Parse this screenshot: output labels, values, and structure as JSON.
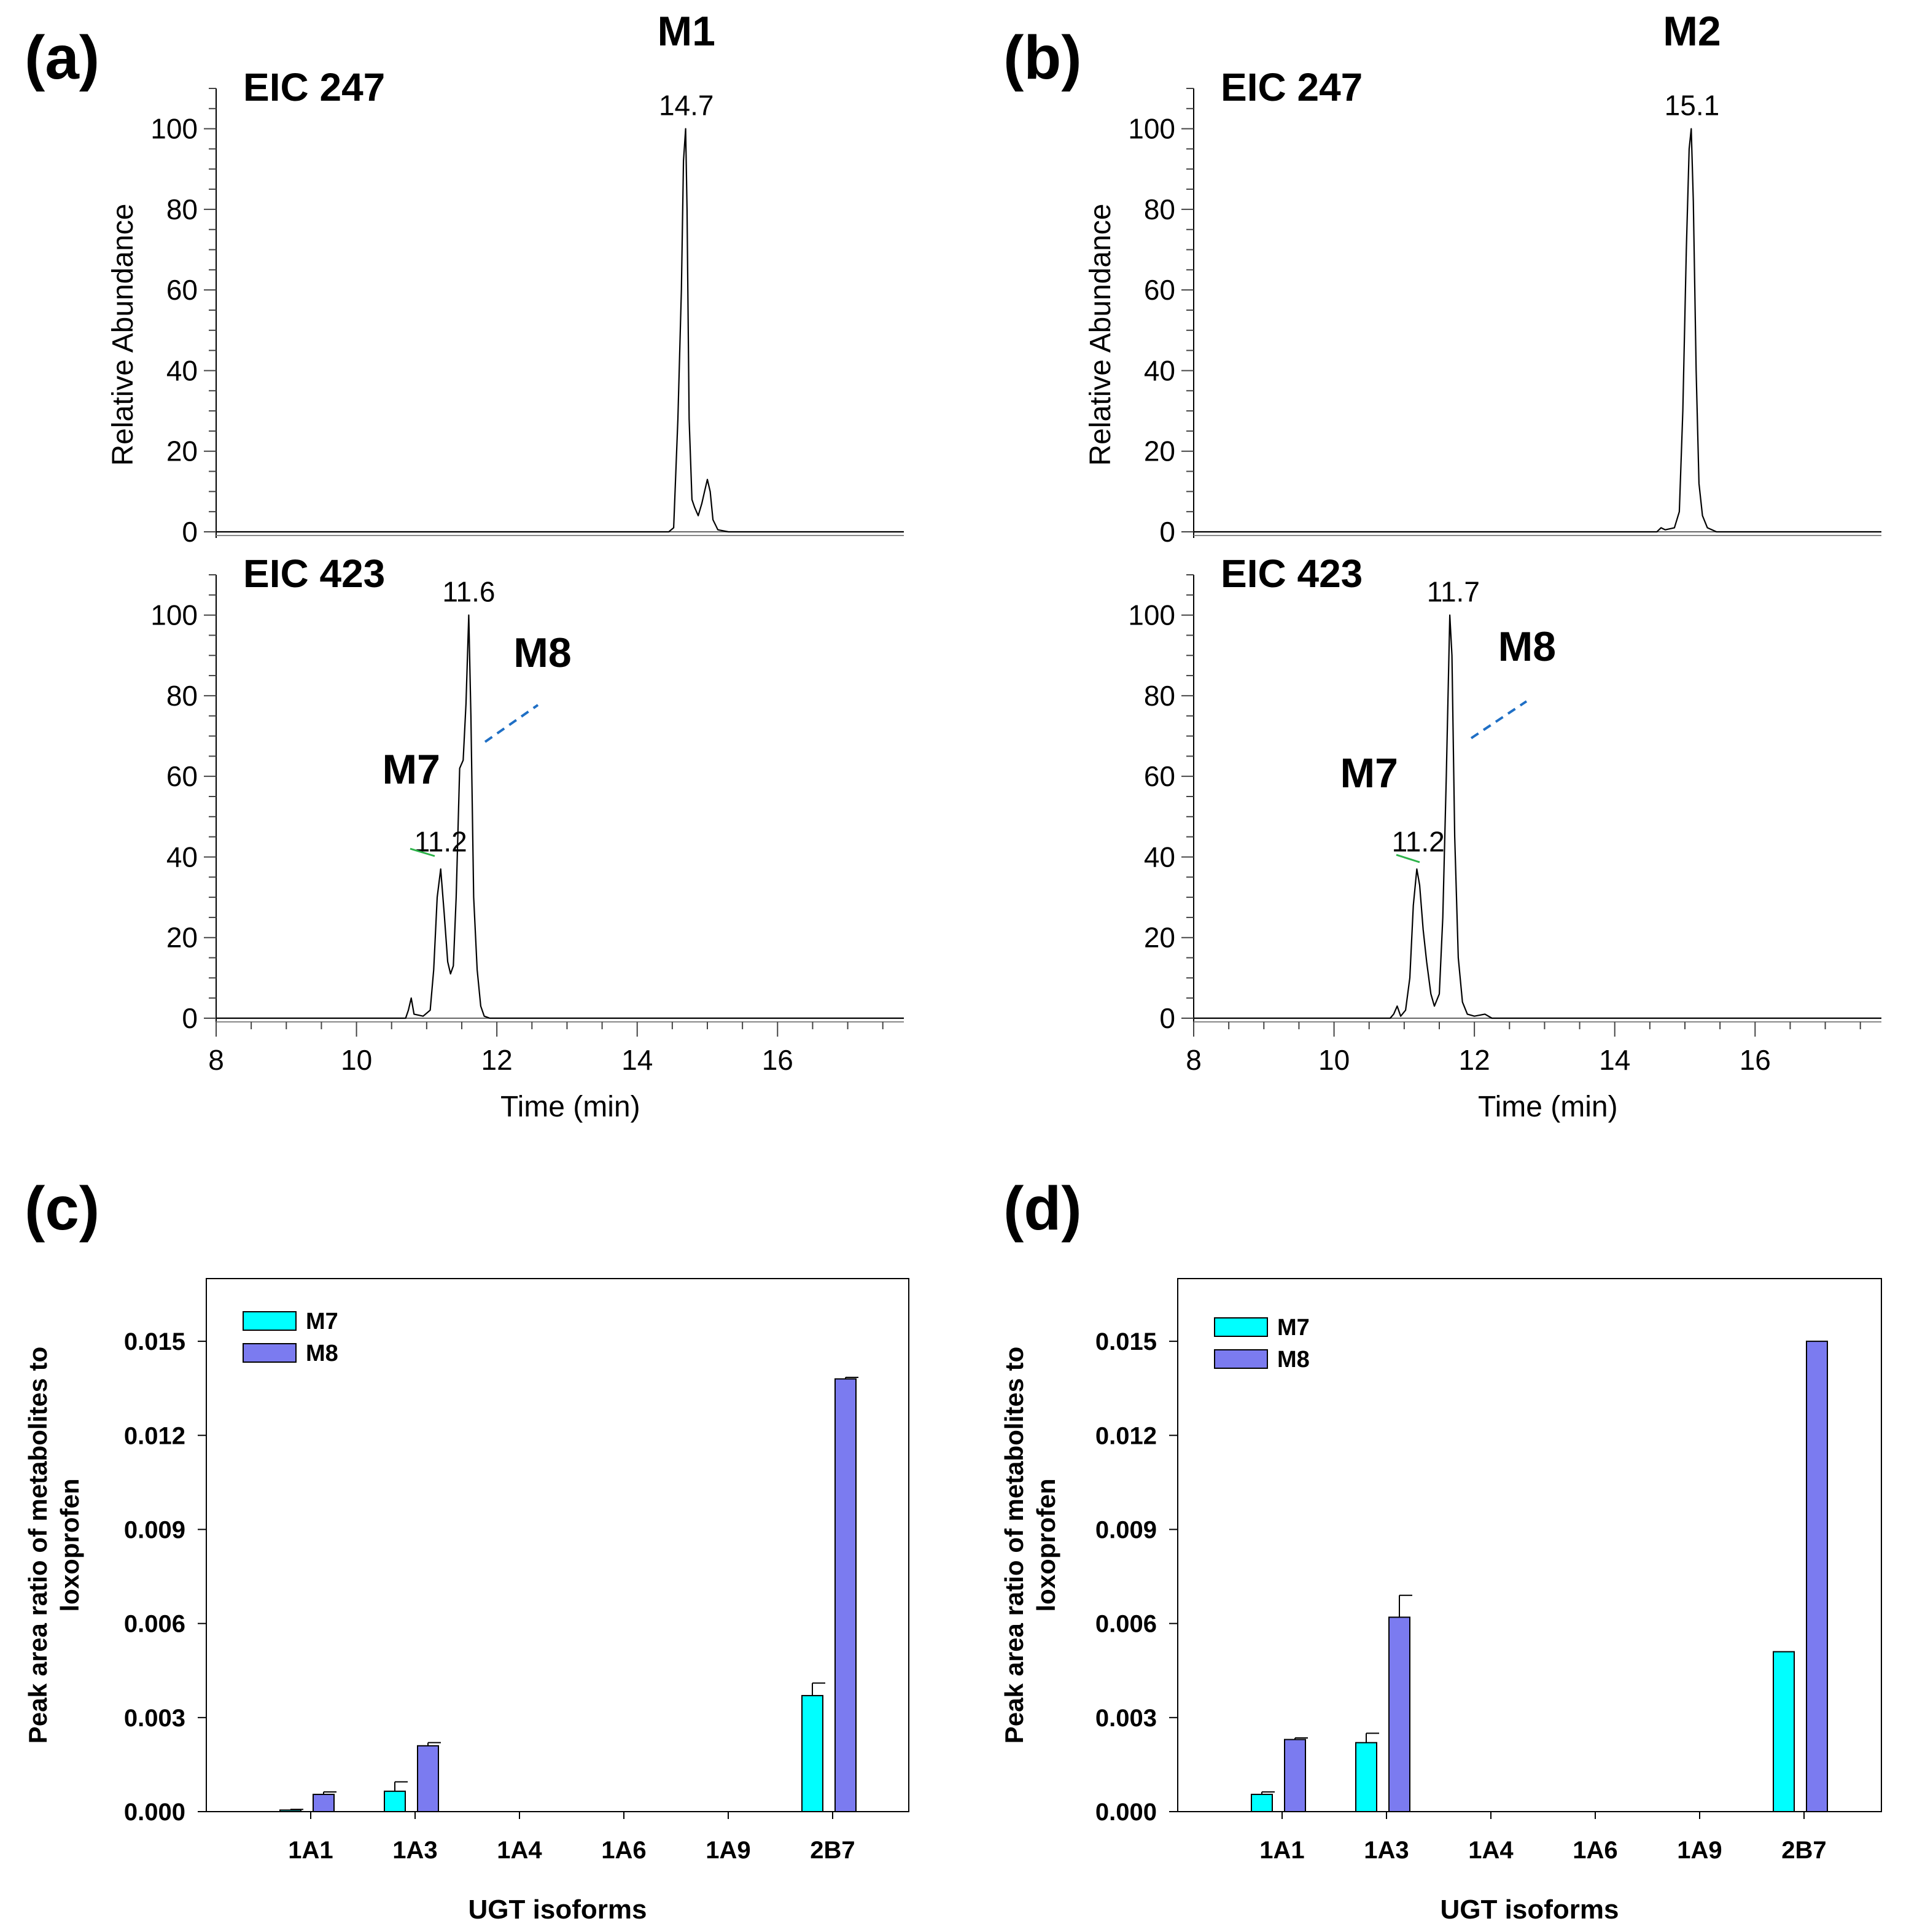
{
  "chart_data": [
    {
      "panel": "(a)",
      "type": "line",
      "xlabel": "Time (min)",
      "ylabel": "Relative Abundance",
      "xlim": [
        8,
        17.8
      ],
      "x_ticks": [
        "8",
        "10",
        "12",
        "14",
        "16"
      ],
      "traces": [
        {
          "label": "EIC 247",
          "ylim": [
            0,
            110
          ],
          "y_ticks": [
            "0",
            "20",
            "40",
            "60",
            "80",
            "100"
          ],
          "peak_labels": [
            {
              "text": "14.7",
              "x": 14.7,
              "y": 100
            }
          ],
          "metabolites": [
            {
              "text": "M1",
              "x": 14.7
            }
          ],
          "points": [
            [
              8,
              0
            ],
            [
              14.45,
              0
            ],
            [
              14.52,
              1
            ],
            [
              14.58,
              28
            ],
            [
              14.63,
              60
            ],
            [
              14.66,
              92
            ],
            [
              14.69,
              100
            ],
            [
              14.71,
              80
            ],
            [
              14.74,
              28
            ],
            [
              14.78,
              8
            ],
            [
              14.82,
              6
            ],
            [
              14.87,
              4
            ],
            [
              14.92,
              7
            ],
            [
              14.96,
              10
            ],
            [
              15.0,
              13
            ],
            [
              15.04,
              10
            ],
            [
              15.08,
              3
            ],
            [
              15.15,
              0.5
            ],
            [
              15.3,
              0
            ],
            [
              17.8,
              0
            ]
          ]
        },
        {
          "label": "EIC 423",
          "ylim": [
            0,
            110
          ],
          "y_ticks": [
            "0",
            "20",
            "40",
            "60",
            "80",
            "100"
          ],
          "peak_labels": [
            {
              "text": "11.6",
              "x": 11.6,
              "y": 100
            },
            {
              "text": "11.2",
              "x": 11.2,
              "y": 38
            }
          ],
          "metabolites": [
            {
              "text": "M7",
              "x": 11.2
            },
            {
              "text": "M8",
              "x": 11.6
            }
          ],
          "points": [
            [
              8,
              0
            ],
            [
              10.7,
              0
            ],
            [
              10.74,
              2
            ],
            [
              10.78,
              5
            ],
            [
              10.82,
              1
            ],
            [
              10.95,
              0.5
            ],
            [
              11.05,
              2
            ],
            [
              11.1,
              12
            ],
            [
              11.15,
              30
            ],
            [
              11.2,
              37
            ],
            [
              11.25,
              26
            ],
            [
              11.3,
              14
            ],
            [
              11.34,
              11
            ],
            [
              11.38,
              13
            ],
            [
              11.42,
              30
            ],
            [
              11.47,
              62
            ],
            [
              11.52,
              64
            ],
            [
              11.56,
              78
            ],
            [
              11.6,
              100
            ],
            [
              11.63,
              75
            ],
            [
              11.67,
              30
            ],
            [
              11.72,
              12
            ],
            [
              11.77,
              3
            ],
            [
              11.82,
              0.5
            ],
            [
              11.9,
              0
            ],
            [
              17.8,
              0
            ]
          ]
        }
      ]
    },
    {
      "panel": "(b)",
      "type": "line",
      "xlabel": "Time (min)",
      "ylabel": "Relative Abundance",
      "xlim": [
        8,
        17.8
      ],
      "x_ticks": [
        "8",
        "10",
        "12",
        "14",
        "16"
      ],
      "traces": [
        {
          "label": "EIC 247",
          "ylim": [
            0,
            110
          ],
          "y_ticks": [
            "0",
            "20",
            "40",
            "60",
            "80",
            "100"
          ],
          "peak_labels": [
            {
              "text": "15.1",
              "x": 15.1,
              "y": 100
            }
          ],
          "metabolites": [
            {
              "text": "M2",
              "x": 15.1
            }
          ],
          "points": [
            [
              8,
              0
            ],
            [
              14.6,
              0
            ],
            [
              14.66,
              1
            ],
            [
              14.72,
              0.5
            ],
            [
              14.85,
              1
            ],
            [
              14.92,
              5
            ],
            [
              14.97,
              30
            ],
            [
              15.02,
              70
            ],
            [
              15.06,
              95
            ],
            [
              15.09,
              100
            ],
            [
              15.12,
              82
            ],
            [
              15.16,
              40
            ],
            [
              15.2,
              12
            ],
            [
              15.25,
              4
            ],
            [
              15.32,
              1
            ],
            [
              15.45,
              0
            ],
            [
              17.8,
              0
            ]
          ]
        },
        {
          "label": "EIC 423",
          "ylim": [
            0,
            110
          ],
          "y_ticks": [
            "0",
            "20",
            "40",
            "60",
            "80",
            "100"
          ],
          "peak_labels": [
            {
              "text": "11.7",
              "x": 11.7,
              "y": 100
            },
            {
              "text": "11.2",
              "x": 11.2,
              "y": 38
            }
          ],
          "metabolites": [
            {
              "text": "M7",
              "x": 11.2
            },
            {
              "text": "M8",
              "x": 11.7
            }
          ],
          "points": [
            [
              8,
              0
            ],
            [
              10.8,
              0
            ],
            [
              10.85,
              1
            ],
            [
              10.9,
              3
            ],
            [
              10.95,
              0.5
            ],
            [
              11.02,
              2
            ],
            [
              11.08,
              10
            ],
            [
              11.13,
              28
            ],
            [
              11.18,
              37
            ],
            [
              11.22,
              33
            ],
            [
              11.27,
              22
            ],
            [
              11.32,
              14
            ],
            [
              11.38,
              6
            ],
            [
              11.43,
              3
            ],
            [
              11.5,
              6
            ],
            [
              11.55,
              25
            ],
            [
              11.6,
              60
            ],
            [
              11.65,
              100
            ],
            [
              11.68,
              90
            ],
            [
              11.72,
              45
            ],
            [
              11.77,
              15
            ],
            [
              11.83,
              4
            ],
            [
              11.9,
              1
            ],
            [
              12.0,
              0.5
            ],
            [
              12.15,
              1
            ],
            [
              12.25,
              0
            ],
            [
              17.8,
              0
            ]
          ]
        }
      ]
    },
    {
      "panel": "(c)",
      "type": "bar",
      "xlabel": "UGT isoforms",
      "ylabel_lines": [
        "Peak area ratio of metabolites to",
        "loxoprofen"
      ],
      "ylim": [
        0,
        0.017
      ],
      "y_ticks": [
        "0.000",
        "0.003",
        "0.006",
        "0.009",
        "0.012",
        "0.015"
      ],
      "categories": [
        "1A1",
        "1A3",
        "1A4",
        "1A6",
        "1A9",
        "2B7"
      ],
      "series": [
        {
          "name": "M7",
          "color": "#00ffff",
          "values": [
            5e-05,
            0.00065,
            0,
            0,
            0,
            0.0037
          ],
          "errors": [
            2e-05,
            0.0003,
            0,
            0,
            0,
            0.0004
          ]
        },
        {
          "name": "M8",
          "color": "#7b7bf0",
          "values": [
            0.00055,
            0.0021,
            0,
            0,
            0,
            0.0138
          ],
          "errors": [
            8e-05,
            0.0001,
            0,
            0,
            0,
            5e-05
          ]
        }
      ]
    },
    {
      "panel": "(d)",
      "type": "bar",
      "xlabel": "UGT isoforms",
      "ylabel_lines": [
        "Peak area ratio of metabolites to",
        "loxoprofen"
      ],
      "ylim": [
        0,
        0.017
      ],
      "y_ticks": [
        "0.000",
        "0.003",
        "0.006",
        "0.009",
        "0.012",
        "0.015"
      ],
      "categories": [
        "1A1",
        "1A3",
        "1A4",
        "1A6",
        "1A9",
        "2B7"
      ],
      "series": [
        {
          "name": "M7",
          "color": "#00ffff",
          "values": [
            0.00055,
            0.0022,
            0,
            0,
            0,
            0.0051
          ],
          "errors": [
            8e-05,
            0.0003,
            0,
            0,
            0,
            0
          ]
        },
        {
          "name": "M8",
          "color": "#7b7bf0",
          "values": [
            0.0023,
            0.0062,
            0,
            0,
            0,
            0.015
          ],
          "errors": [
            5e-05,
            0.0007,
            0,
            0,
            0,
            0
          ]
        }
      ]
    }
  ]
}
